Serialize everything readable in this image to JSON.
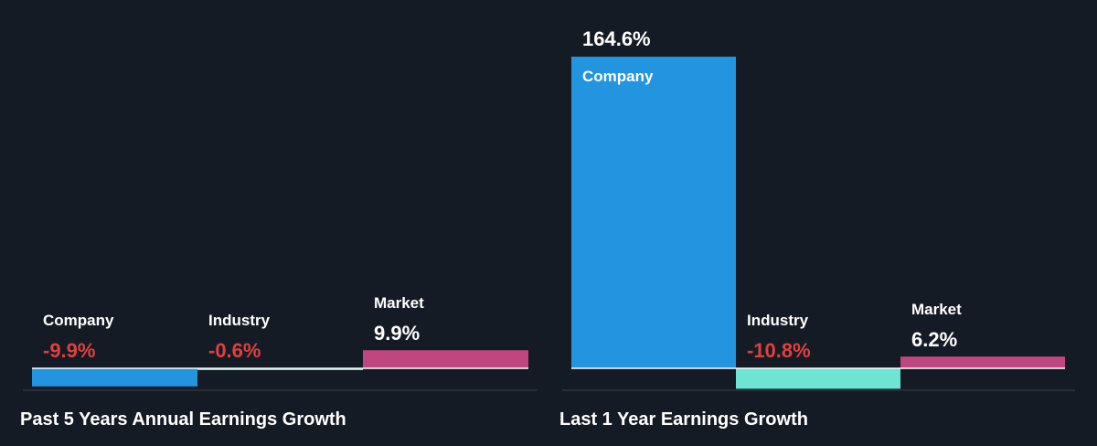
{
  "colors": {
    "background": "#151b24",
    "text": "#ffffff",
    "negative": "#e0403f",
    "baseline": "#ffffff",
    "axis_line": "#3a414b",
    "company": "#2394e0",
    "industry": "#6ee5d4",
    "market": "#c0467f"
  },
  "chart_data": [
    {
      "type": "bar",
      "title": "Past 5 Years Annual Earnings Growth",
      "categories": [
        "Company",
        "Industry",
        "Market"
      ],
      "values": [
        -9.9,
        -0.6,
        9.9
      ],
      "value_labels": [
        "-9.9%",
        "-0.6%",
        "9.9%"
      ],
      "series_colors": [
        "company",
        "industry",
        "market"
      ],
      "unit": "%",
      "grid": false,
      "legend": "none"
    },
    {
      "type": "bar",
      "title": "Last 1 Year Earnings Growth",
      "categories": [
        "Company",
        "Industry",
        "Market"
      ],
      "values": [
        164.6,
        -10.8,
        6.2
      ],
      "value_labels": [
        "164.6%",
        "-10.8%",
        "6.2%"
      ],
      "series_colors": [
        "company",
        "industry",
        "market"
      ],
      "unit": "%",
      "grid": false,
      "legend": "none"
    }
  ]
}
